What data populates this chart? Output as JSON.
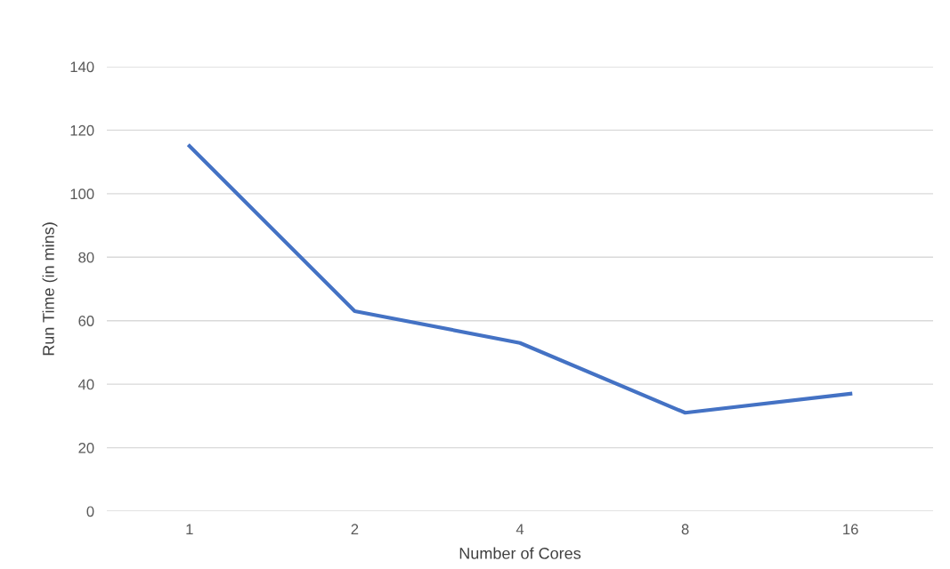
{
  "chart_data": {
    "type": "line",
    "xlabel": "Number of Cores",
    "ylabel": "Run Time (in mins)",
    "categories": [
      "1",
      "2",
      "4",
      "8",
      "16"
    ],
    "series": [
      {
        "color": "#4472c4",
        "values": [
          115,
          63,
          53,
          31,
          37
        ]
      }
    ],
    "ylim": [
      0,
      140
    ],
    "yticks": [
      0,
      20,
      40,
      60,
      80,
      100,
      120,
      140
    ],
    "grid": "y",
    "marker": "none",
    "line_style": "solid"
  }
}
